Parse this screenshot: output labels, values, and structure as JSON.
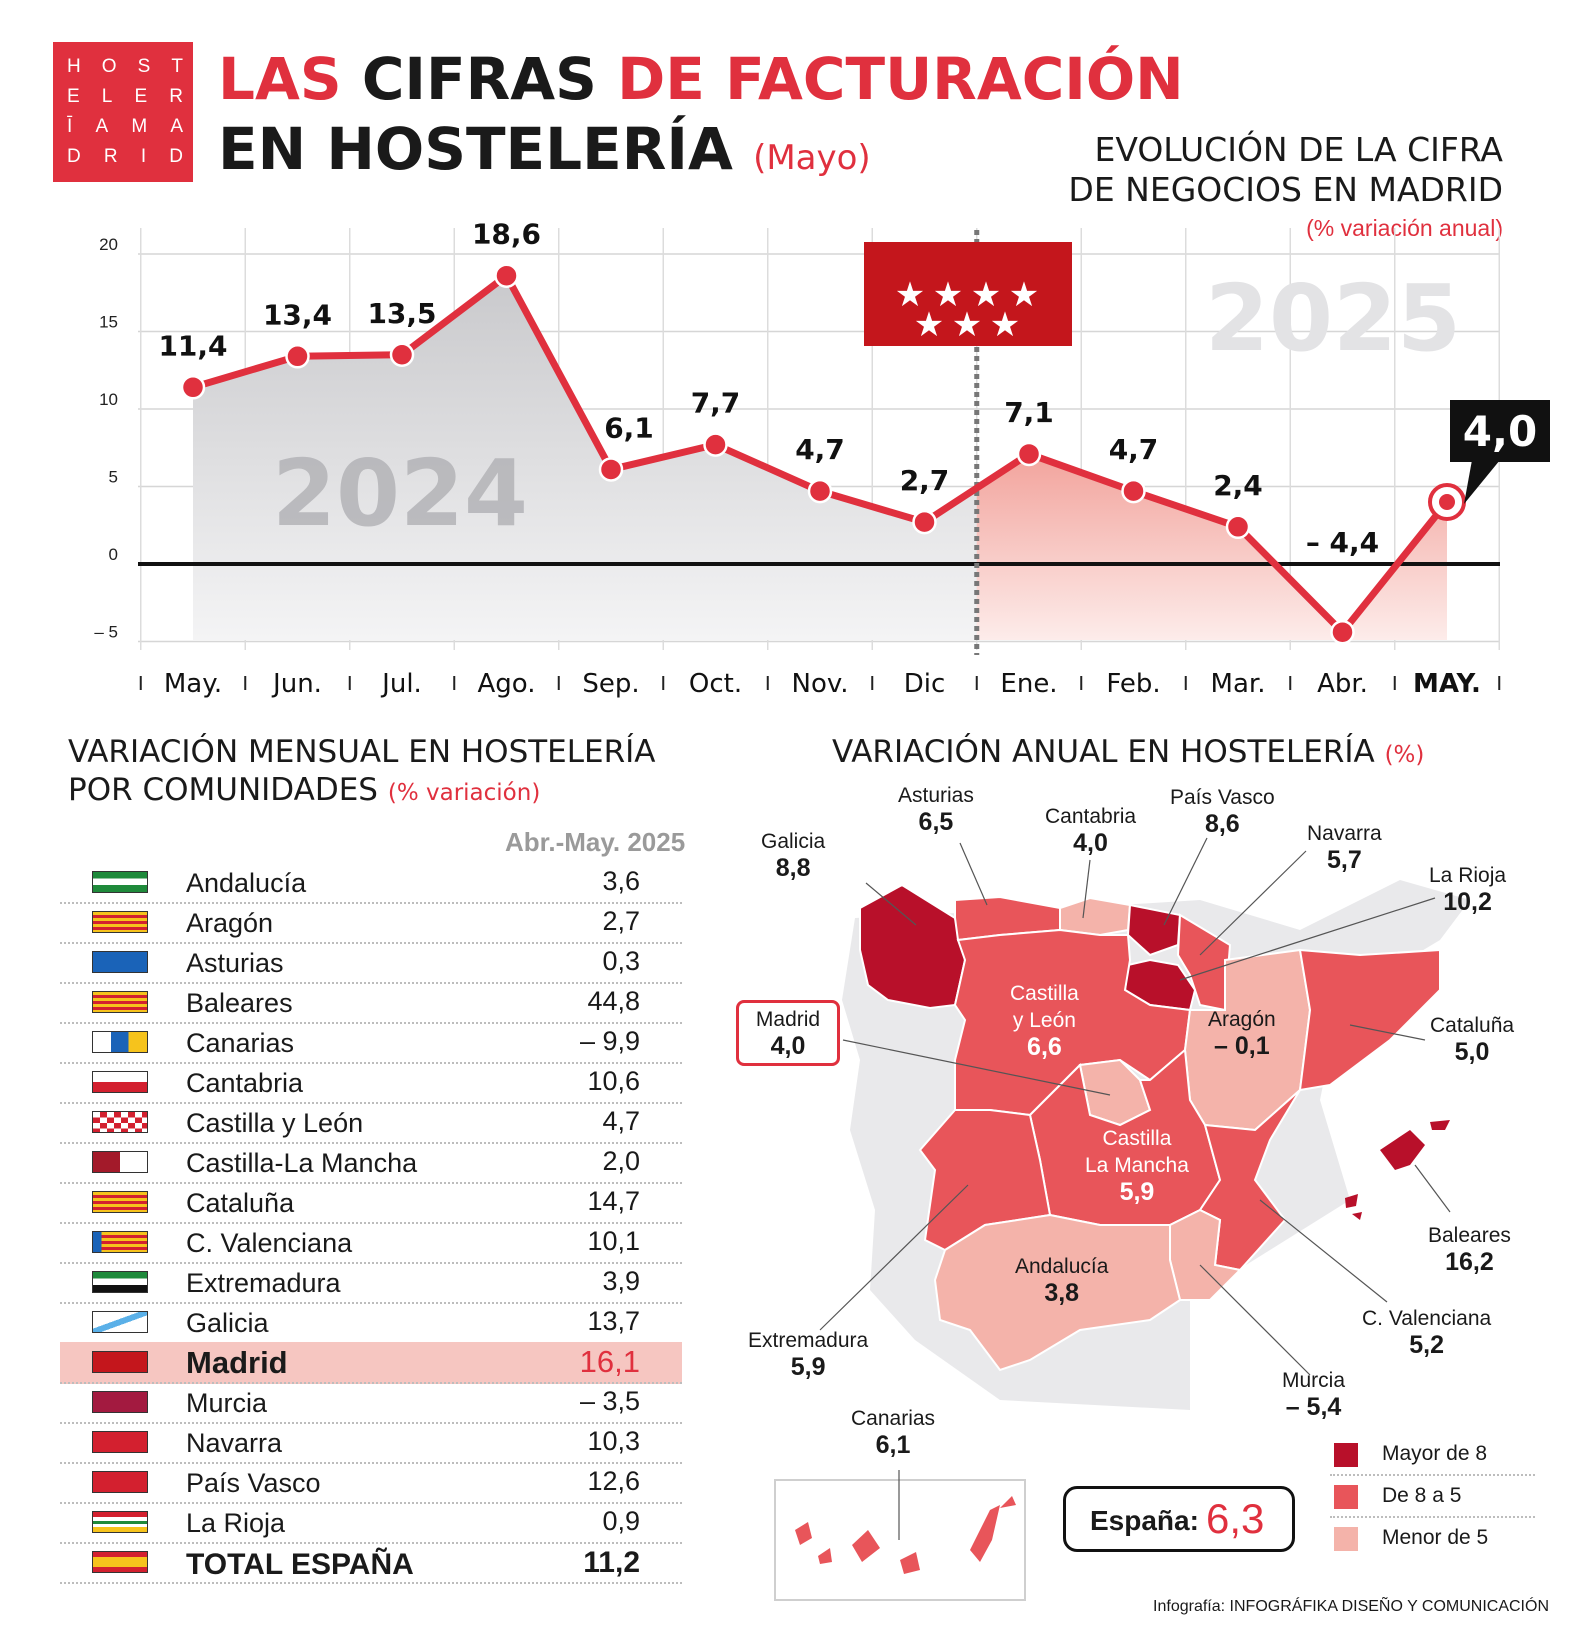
{
  "logo": {
    "rows": [
      [
        "H",
        "O",
        "S",
        "T"
      ],
      [
        "E",
        "L",
        "E",
        "R"
      ],
      [
        "Ī",
        "A",
        "M",
        "A"
      ],
      [
        "D",
        "R",
        "I",
        "D"
      ]
    ]
  },
  "title": {
    "w1": "LAS",
    "w2": "CIFRAS",
    "w3": "DE FACTURACIÓN",
    "line2": "EN HOSTELERÍA",
    "month": "(Mayo)"
  },
  "chart_title": {
    "line1": "EVOLUCIÓN DE LA CIFRA",
    "line2": "DE NEGOCIOS EN MADRID",
    "unit": "(% variación anual)"
  },
  "year_labels": {
    "left": "2024",
    "right": "2025"
  },
  "highlight_value": "4,0",
  "chart_data": {
    "type": "line",
    "title": "EVOLUCIÓN DE LA CIFRA DE NEGOCIOS EN MADRID",
    "ylabel": "(% variación anual)",
    "ylim": [
      -5,
      20
    ],
    "yticks": [
      -5,
      0,
      5,
      10,
      15,
      20
    ],
    "ytick_labels": [
      "– 5",
      "0",
      "5",
      "10",
      "15",
      "20"
    ],
    "categories": [
      "May.",
      "Jun.",
      "Jul.",
      "Ago.",
      "Sep.",
      "Oct.",
      "Nov.",
      "Dic",
      "Ene.",
      "Feb.",
      "Mar.",
      "Abr.",
      "MAY."
    ],
    "values": [
      11.4,
      13.4,
      13.5,
      18.6,
      6.1,
      7.7,
      4.7,
      2.7,
      7.1,
      4.7,
      2.4,
      -4.4,
      4.0
    ],
    "value_labels": [
      "11,4",
      "13,4",
      "13,5",
      "18,6",
      "6,1",
      "7,7",
      "4,7",
      "2,7",
      "7,1",
      "4,7",
      "2,4",
      "– 4,4",
      "4,0"
    ],
    "year_split_after": "Dic",
    "grid": true,
    "colors": {
      "line": "#e0303e",
      "area_2024": "#d4d4d6",
      "area_2025": "#f2a9a3"
    }
  },
  "monthly": {
    "title1": "VARIACIÓN MENSUAL EN HOSTELERÍA",
    "title2": "POR COMUNIDADES",
    "unit": "(% variación)",
    "col_header": "Abr.-May. 2025",
    "rows": [
      {
        "name": "Andalucía",
        "value": "3,6"
      },
      {
        "name": "Aragón",
        "value": "2,7"
      },
      {
        "name": "Asturias",
        "value": "0,3"
      },
      {
        "name": "Baleares",
        "value": "44,8"
      },
      {
        "name": "Canarias",
        "value": "– 9,9"
      },
      {
        "name": "Cantabria",
        "value": "10,6"
      },
      {
        "name": "Castilla y León",
        "value": "4,7"
      },
      {
        "name": "Castilla-La Mancha",
        "value": "2,0"
      },
      {
        "name": "Cataluña",
        "value": "14,7"
      },
      {
        "name": "C. Valenciana",
        "value": "10,1"
      },
      {
        "name": "Extremadura",
        "value": "3,9"
      },
      {
        "name": "Galicia",
        "value": "13,7"
      },
      {
        "name": "Madrid",
        "value": "16,1"
      },
      {
        "name": "Murcia",
        "value": "– 3,5"
      },
      {
        "name": "Navarra",
        "value": "10,3"
      },
      {
        "name": "País Vasco",
        "value": "12,6"
      },
      {
        "name": "La Rioja",
        "value": "0,9"
      },
      {
        "name": "TOTAL ESPAÑA",
        "value": "11,2"
      }
    ]
  },
  "annual": {
    "title": "VARIACIÓN ANUAL EN HOSTELERÍA",
    "unit": "(%)",
    "regions": {
      "galicia": {
        "name": "Galicia",
        "value": "8,8"
      },
      "asturias": {
        "name": "Asturias",
        "value": "6,5"
      },
      "cantabria": {
        "name": "Cantabria",
        "value": "4,0"
      },
      "pais_vasco": {
        "name": "País Vasco",
        "value": "8,6"
      },
      "navarra": {
        "name": "Navarra",
        "value": "5,7"
      },
      "la_rioja": {
        "name": "La Rioja",
        "value": "10,2"
      },
      "castilla_leon": {
        "name1": "Castilla",
        "name2": "y León",
        "value": "6,6"
      },
      "aragon": {
        "name": "Aragón",
        "value": "– 0,1"
      },
      "cataluna": {
        "name": "Cataluña",
        "value": "5,0"
      },
      "madrid": {
        "name": "Madrid",
        "value": "4,0"
      },
      "castilla_mancha": {
        "name1": "Castilla",
        "name2": "La Mancha",
        "value": "5,9"
      },
      "baleares": {
        "name": "Baleares",
        "value": "16,2"
      },
      "valenciana": {
        "name": "C. Valenciana",
        "value": "5,2"
      },
      "andalucia": {
        "name": "Andalucía",
        "value": "3,8"
      },
      "extremadura": {
        "name": "Extremadura",
        "value": "5,9"
      },
      "murcia": {
        "name": "Murcia",
        "value": "– 5,4"
      },
      "canarias": {
        "name": "Canarias",
        "value": "6,1"
      }
    },
    "spain": {
      "label": "España:",
      "value": "6,3"
    },
    "legend": [
      {
        "label": "Mayor de 8",
        "color": "#b8102a"
      },
      {
        "label": "De 8 a 5",
        "color": "#e8555a"
      },
      {
        "label": "Menor de 5",
        "color": "#f4b3aa"
      }
    ]
  },
  "credit": {
    "prefix": "Infografía: ",
    "name": "INFOGRÁFIKA DISEÑO Y COMUNICACIÓN"
  }
}
